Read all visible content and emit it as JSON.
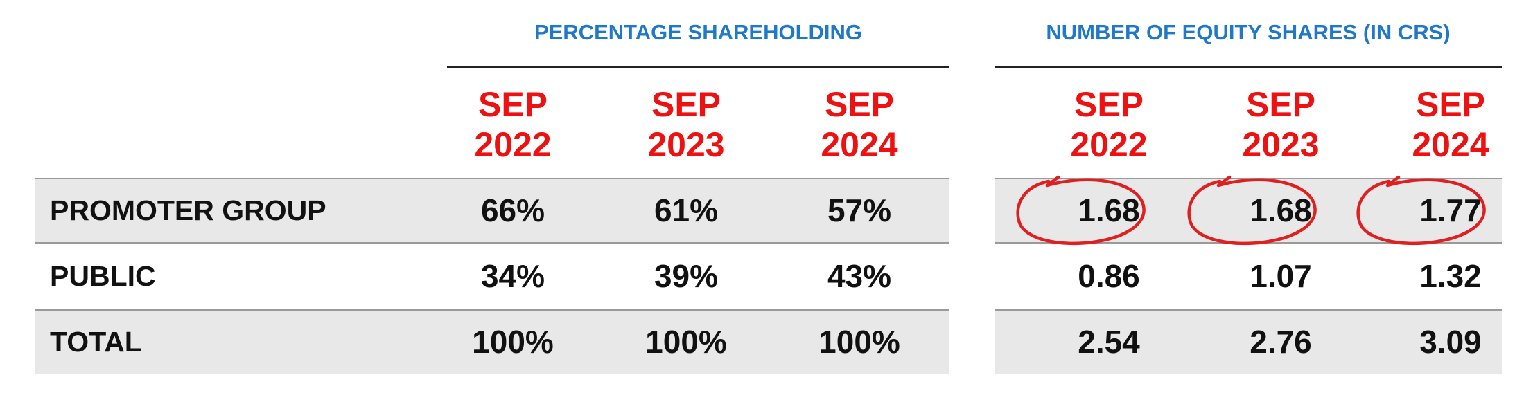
{
  "groups": {
    "percentage": {
      "title": "PERCENTAGE SHAREHOLDING"
    },
    "shares": {
      "title": "NUMBER OF EQUITY SHARES (IN CRS)"
    }
  },
  "columns": [
    {
      "line1": "SEP",
      "line2": "2022"
    },
    {
      "line1": "SEP",
      "line2": "2023"
    },
    {
      "line1": "SEP",
      "line2": "2024"
    }
  ],
  "rows": [
    {
      "label": "PROMOTER GROUP",
      "percentage": [
        "66%",
        "61%",
        "57%"
      ],
      "shares": [
        "1.68",
        "1.68",
        "1.77"
      ],
      "shares_circled": true
    },
    {
      "label": "PUBLIC",
      "percentage": [
        "34%",
        "39%",
        "43%"
      ],
      "shares": [
        "0.86",
        "1.07",
        "1.32"
      ]
    },
    {
      "label": "TOTAL",
      "percentage": [
        "100%",
        "100%",
        "100%"
      ],
      "shares": [
        "2.54",
        "2.76",
        "3.09"
      ]
    }
  ],
  "colors": {
    "group_title": "#1f78c8",
    "year_heading": "#ee1111",
    "circle_annotation": "#e02020",
    "shaded_row": "#e8e8e8"
  }
}
